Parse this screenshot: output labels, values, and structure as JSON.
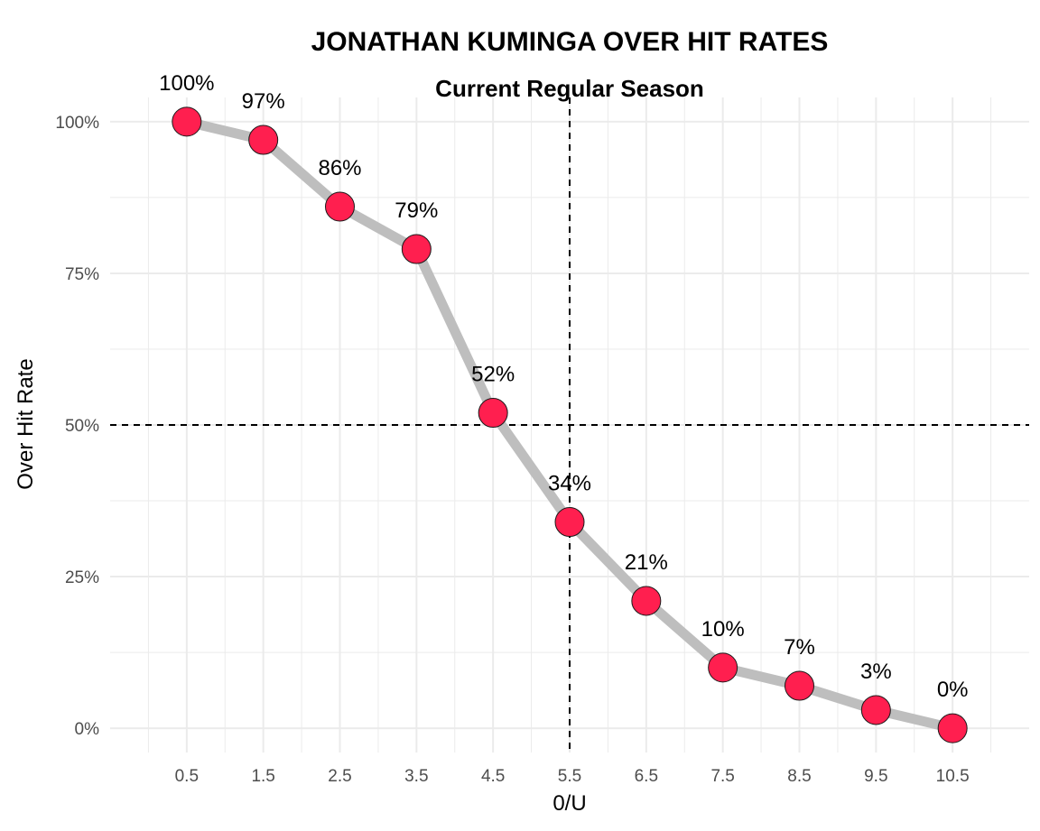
{
  "chart_data": {
    "type": "line",
    "title": "JONATHAN KUMINGA OVER HIT RATES",
    "subtitle": "Current Regular Season",
    "xlabel": "0/U",
    "ylabel": "Over Hit Rate",
    "x": [
      0.5,
      1.5,
      2.5,
      3.5,
      4.5,
      5.5,
      6.5,
      7.5,
      8.5,
      9.5,
      10.5
    ],
    "values": [
      100,
      97,
      86,
      79,
      52,
      34,
      21,
      10,
      7,
      3,
      0
    ],
    "labels": [
      "100%",
      "97%",
      "86%",
      "79%",
      "52%",
      "34%",
      "21%",
      "10%",
      "7%",
      "3%",
      "0%"
    ],
    "x_ticks": [
      "0.5",
      "1.5",
      "2.5",
      "3.5",
      "4.5",
      "5.5",
      "6.5",
      "7.5",
      "8.5",
      "9.5",
      "10.5"
    ],
    "y_ticks": [
      {
        "value": 0,
        "label": "0%"
      },
      {
        "value": 25,
        "label": "25%"
      },
      {
        "value": 50,
        "label": "50%"
      },
      {
        "value": 75,
        "label": "75%"
      },
      {
        "value": 100,
        "label": "100%"
      }
    ],
    "xlim": [
      -0.5,
      11.5
    ],
    "ylim": [
      -4,
      104
    ],
    "reference_lines": {
      "x": 5.5,
      "y": 50
    },
    "grid": true,
    "legend": "none",
    "colors": {
      "line": "#bebebe",
      "point_fill": "#ff1f4f",
      "point_stroke": "#1a1a1a",
      "grid": "#ebebeb",
      "reference": "#000000"
    }
  }
}
